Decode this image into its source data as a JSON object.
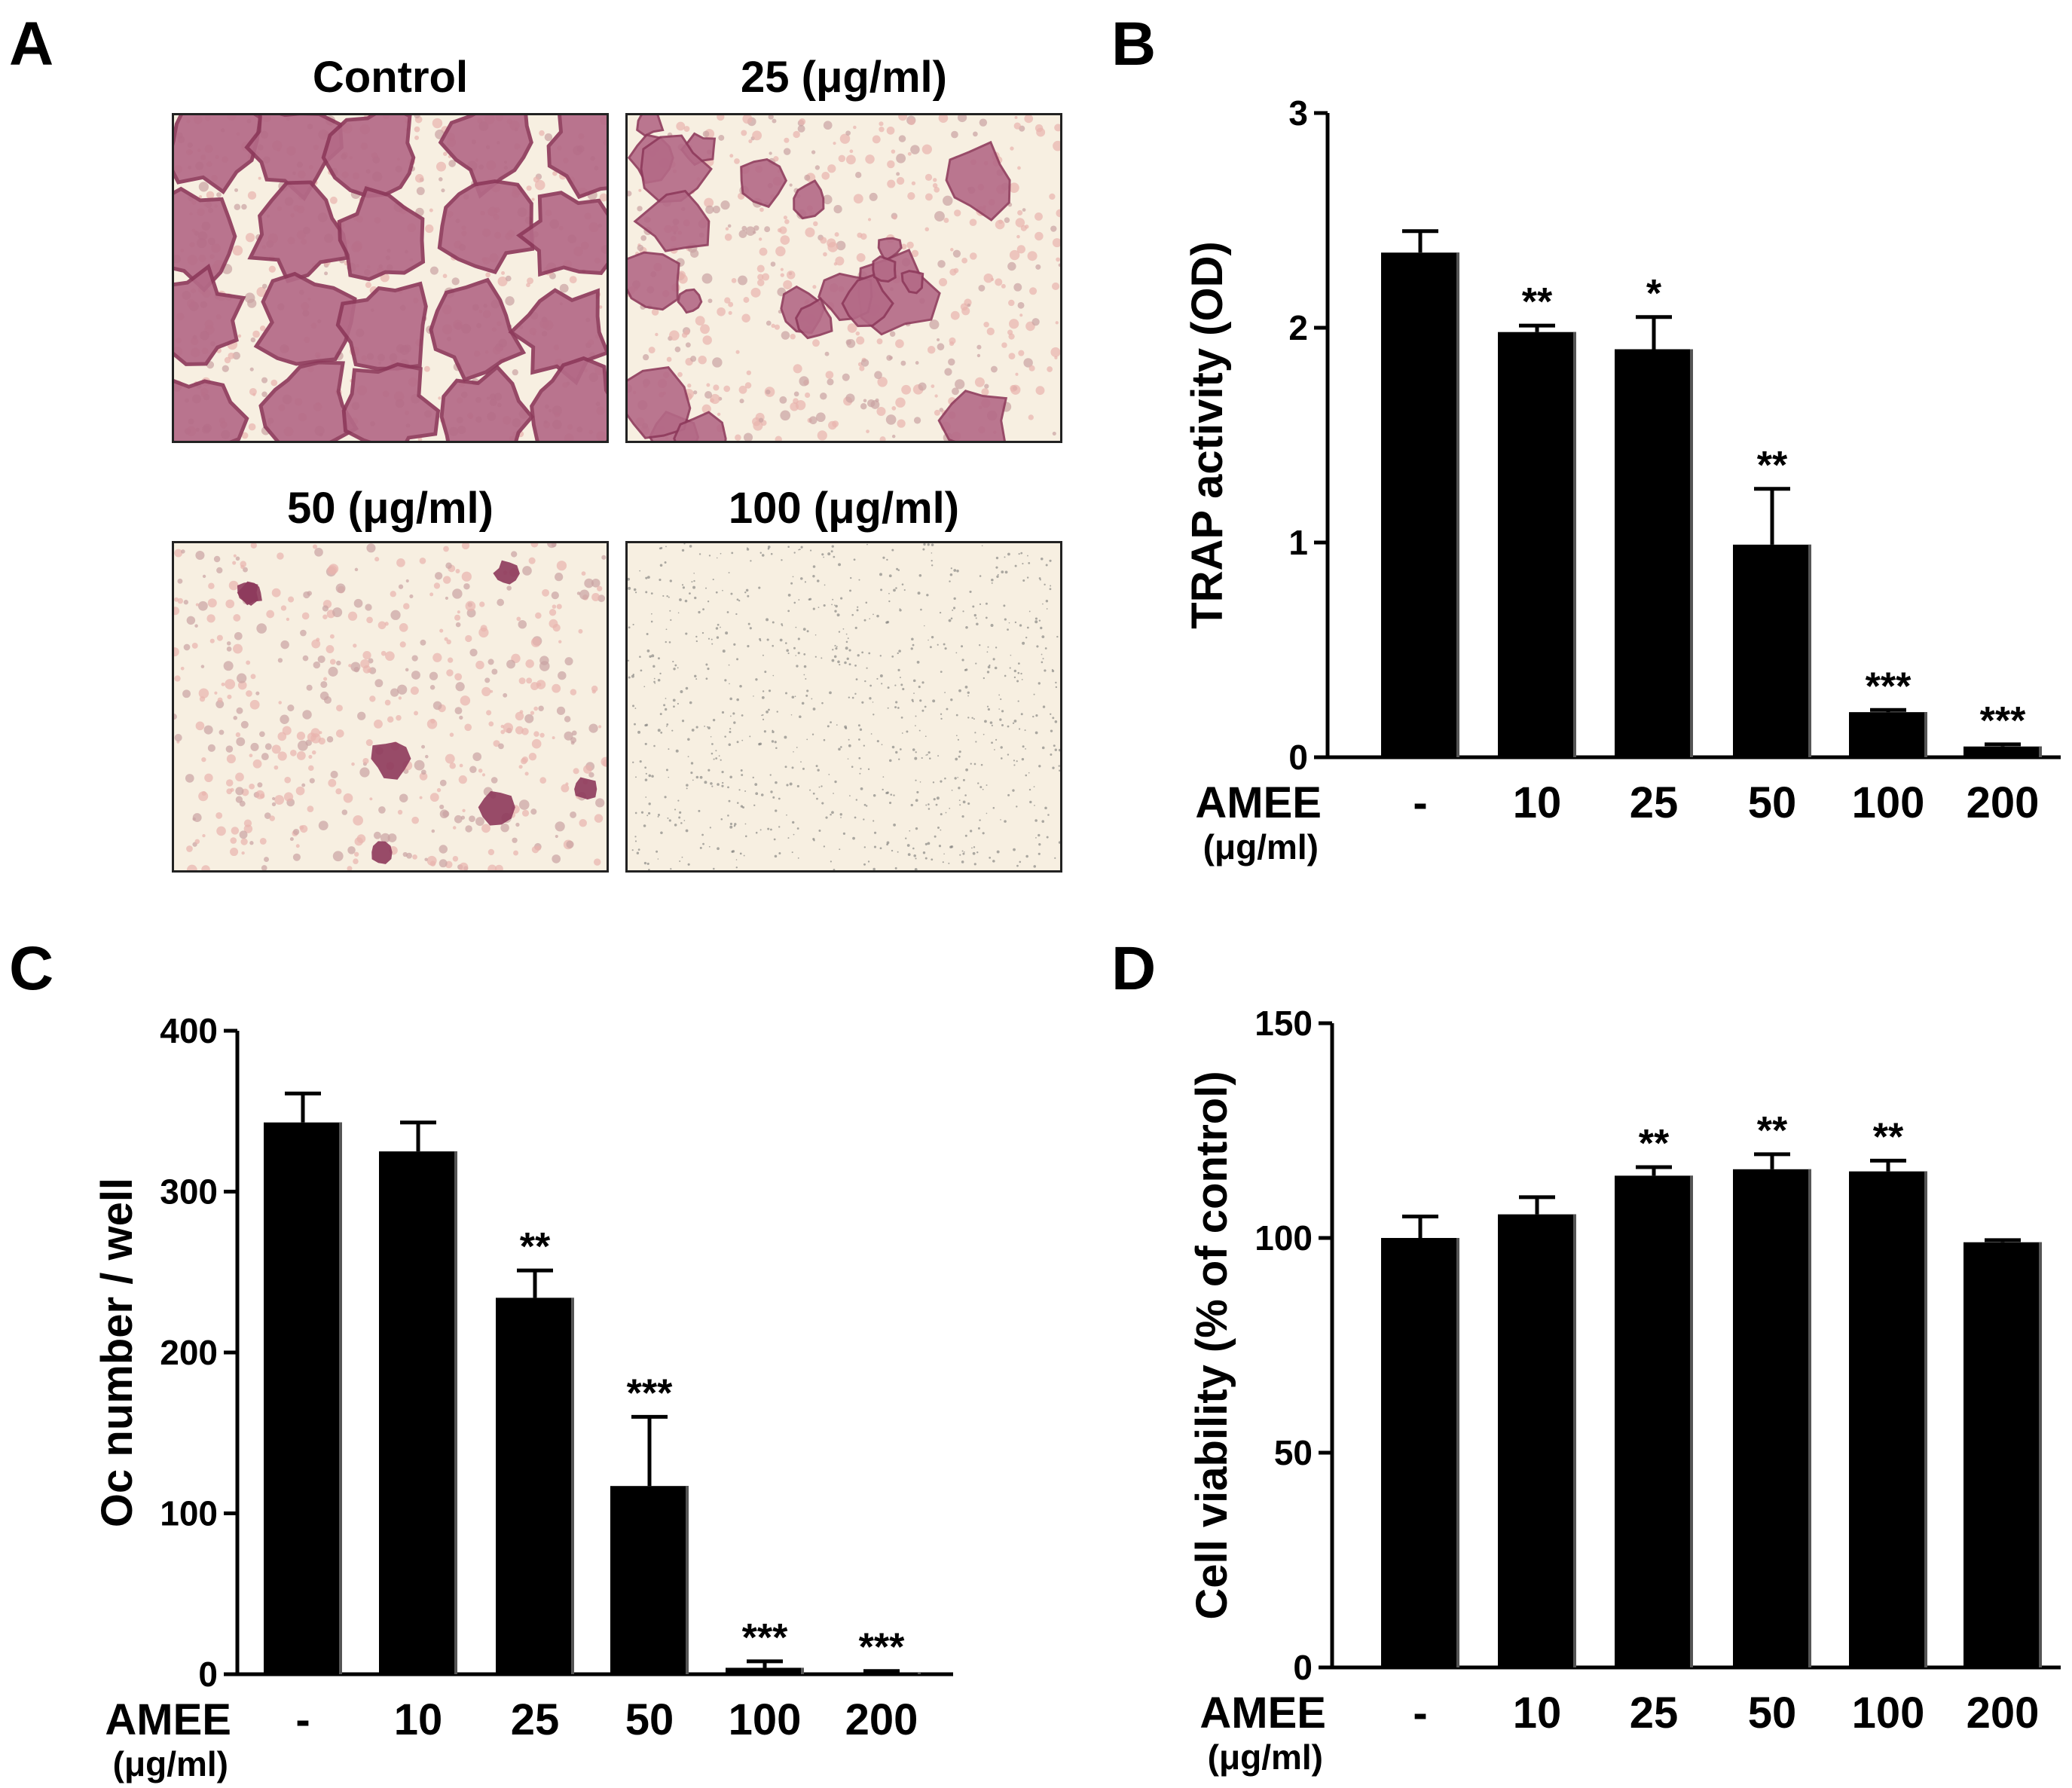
{
  "panel_labels": [
    "A",
    "B",
    "C",
    "D"
  ],
  "panel_a": {
    "images": [
      {
        "title": "Control",
        "density": 1.0
      },
      {
        "title": "25 (μg/ml)",
        "density": 0.55
      },
      {
        "title": "50 (μg/ml)",
        "density": 0.18
      },
      {
        "title": "100 (μg/ml)",
        "density": 0.0
      }
    ],
    "colors": {
      "stain": "#8e3a5c",
      "stain_light": "#b46a87",
      "background": "#f7efe1",
      "cell": "#e8b4ae"
    }
  },
  "chart_data": [
    {
      "panel": "B",
      "type": "bar",
      "categories": [
        "-",
        "10",
        "25",
        "50",
        "100",
        "200"
      ],
      "values": [
        2.35,
        1.98,
        1.9,
        0.99,
        0.21,
        0.05
      ],
      "errors": [
        0.1,
        0.03,
        0.15,
        0.26,
        0.01,
        0.01
      ],
      "significance": [
        "",
        "**",
        "*",
        "**",
        "***",
        "***"
      ],
      "ylabel": "TRAP activity (OD)",
      "xlabel_line1": "AMEE",
      "xlabel_line2": "(μg/ml)",
      "ylim": [
        0,
        3
      ],
      "yticks": [
        0,
        1,
        2,
        3
      ],
      "ytick_labels": [
        "0",
        "1",
        "2",
        "3"
      ],
      "bar_color": "#000000",
      "grid": false
    },
    {
      "panel": "C",
      "type": "bar",
      "categories": [
        "-",
        "10",
        "25",
        "50",
        "100",
        "200"
      ],
      "values": [
        343,
        325,
        234,
        117,
        4,
        1
      ],
      "errors": [
        18,
        18,
        17,
        43,
        4,
        1
      ],
      "significance": [
        "",
        "",
        "**",
        "***",
        "***",
        "***"
      ],
      "ylabel": "Oc number / well",
      "xlabel_line1": "AMEE",
      "xlabel_line2": "(μg/ml)",
      "ylim": [
        0,
        400
      ],
      "yticks": [
        0,
        100,
        200,
        300,
        400
      ],
      "ytick_labels": [
        "0",
        "100",
        "200",
        "300",
        "400"
      ],
      "bar_color": "#000000",
      "grid": false
    },
    {
      "panel": "D",
      "type": "bar",
      "categories": [
        "-",
        "10",
        "25",
        "50",
        "100",
        "200"
      ],
      "values": [
        100,
        105.5,
        114.5,
        116,
        115.5,
        99
      ],
      "errors": [
        5,
        4,
        2,
        3.5,
        2.5,
        0.5
      ],
      "significance": [
        "",
        "",
        "**",
        "**",
        "**",
        ""
      ],
      "ylabel": "Cell viability (% of control)",
      "xlabel_line1": "AMEE",
      "xlabel_line2": "(μg/ml)",
      "ylim": [
        0,
        150
      ],
      "yticks": [
        0,
        50,
        100,
        150
      ],
      "ytick_labels": [
        "0",
        "50",
        "100",
        "150"
      ],
      "bar_color": "#000000",
      "grid": false
    }
  ]
}
